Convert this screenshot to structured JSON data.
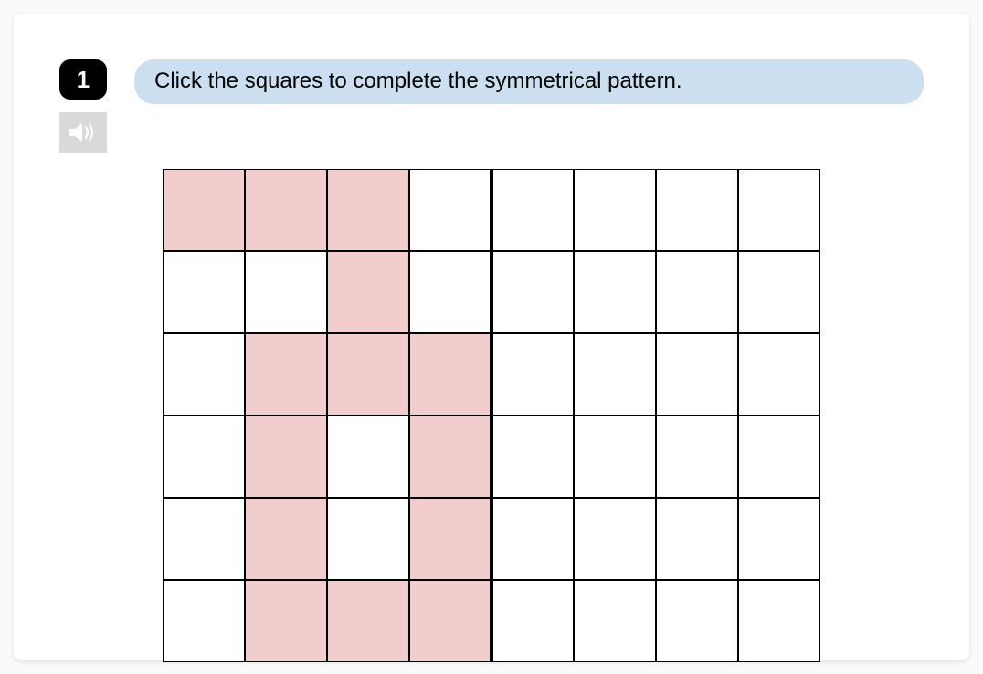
{
  "question": {
    "number": "1",
    "instruction": "Click the squares to complete the symmetrical pattern."
  },
  "colors": {
    "qnum_bg": "#000000",
    "qnum_text": "#ffffff",
    "instruction_bg": "#cbdff0",
    "instruction_text": "#000000",
    "audio_bg": "#d9d9d9",
    "audio_icon": "#ffffff",
    "cell_filled": "#f1cdcd",
    "cell_empty": "#ffffff",
    "grid_border": "#000000",
    "mirror_line": "#000000",
    "card_bg": "#ffffff"
  },
  "typography": {
    "qnum_fontsize": 26,
    "instruction_fontsize": 24
  },
  "grid": {
    "rows": 6,
    "cols": 8,
    "cell_size": 90,
    "mirror_after_col": 4,
    "mirror_line_width": 4,
    "filled": [
      [
        1,
        1,
        1,
        0,
        0,
        0,
        0,
        0
      ],
      [
        0,
        0,
        1,
        0,
        0,
        0,
        0,
        0
      ],
      [
        0,
        1,
        1,
        1,
        0,
        0,
        0,
        0
      ],
      [
        0,
        1,
        0,
        1,
        0,
        0,
        0,
        0
      ],
      [
        0,
        1,
        0,
        1,
        0,
        0,
        0,
        0
      ],
      [
        0,
        1,
        1,
        1,
        0,
        0,
        0,
        0
      ]
    ]
  }
}
